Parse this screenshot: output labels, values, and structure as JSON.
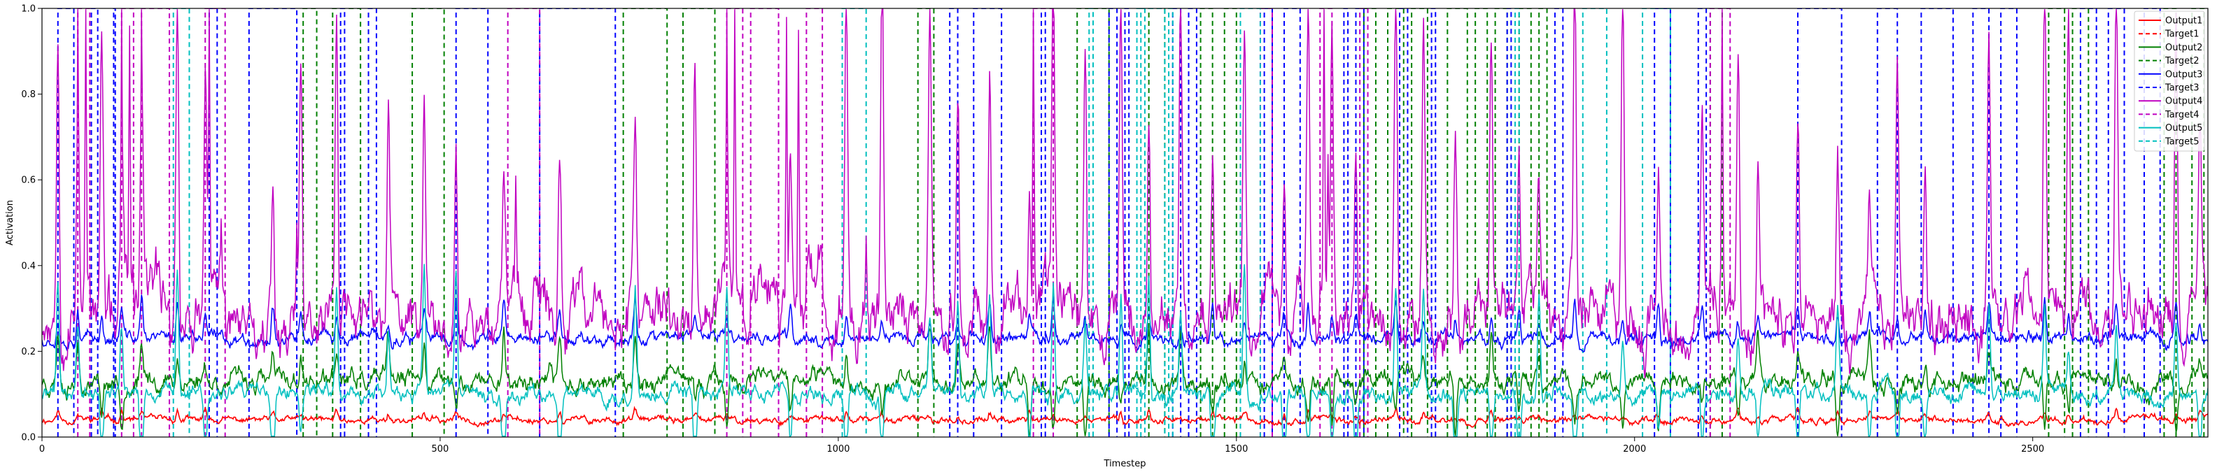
{
  "chart_data": {
    "type": "line",
    "title": "",
    "xlabel": "Timestep",
    "ylabel": "Activation",
    "xlim": [
      0,
      2720
    ],
    "ylim": [
      0,
      1.0
    ],
    "x_ticks": [
      0,
      500,
      1000,
      1500,
      2000,
      2500
    ],
    "y_ticks": [
      0.0,
      0.2,
      0.4,
      0.6,
      0.8,
      1.0
    ],
    "x_tick_labels": [
      "0",
      "500",
      "1000",
      "1500",
      "2000",
      "2500"
    ],
    "y_tick_labels": [
      "0.0",
      "0.2",
      "0.4",
      "0.6",
      "0.8",
      "1.0"
    ],
    "grid": false,
    "legend_position": "top-right",
    "series": [
      {
        "name": "Output1",
        "color": "#ff0000",
        "style": "solid",
        "baseline": 0.04,
        "noise": 0.004,
        "spike": 0.02,
        "seed": 11
      },
      {
        "name": "Target1",
        "color": "#ff0000",
        "style": "dashed",
        "segments": []
      },
      {
        "name": "Output2",
        "color": "#008000",
        "style": "solid",
        "baseline": 0.13,
        "noise": 0.012,
        "spike": 0.12,
        "seed": 23
      },
      {
        "name": "Target2",
        "color": "#008000",
        "style": "dashed",
        "segments": [
          [
            328,
            345
          ],
          [
            365,
            400
          ],
          [
            465,
            505
          ],
          [
            730,
            785
          ],
          [
            805,
            845
          ],
          [
            1100,
            1120
          ],
          [
            1300,
            1340
          ],
          [
            1390,
            1410
          ],
          [
            1455,
            1470
          ],
          [
            1485,
            1500
          ],
          [
            1660,
            1675
          ],
          [
            1690,
            1710
          ],
          [
            1720,
            1740
          ],
          [
            1765,
            1790
          ],
          [
            1800,
            1815
          ],
          [
            1825,
            1840
          ],
          [
            1855,
            1870
          ],
          [
            1880,
            1890
          ],
          [
            2095,
            2110
          ],
          [
            2520,
            2540
          ],
          [
            2550,
            2570
          ],
          [
            2665,
            2680
          ],
          [
            2700,
            2715
          ]
        ]
      },
      {
        "name": "Output3",
        "color": "#0000ff",
        "style": "solid",
        "baseline": 0.23,
        "noise": 0.008,
        "spike": 0.08,
        "seed": 37
      },
      {
        "name": "Target3",
        "color": "#0000ff",
        "style": "dashed",
        "segments": [
          [
            20,
            40
          ],
          [
            62,
            70
          ],
          [
            90,
            92
          ],
          [
            210,
            220
          ],
          [
            260,
            320
          ],
          [
            375,
            380
          ],
          [
            410,
            420
          ],
          [
            520,
            560
          ],
          [
            625,
            720
          ],
          [
            1140,
            1150
          ],
          [
            1170,
            1205
          ],
          [
            1255,
            1260
          ],
          [
            1340,
            1350
          ],
          [
            1360,
            1365
          ],
          [
            1420,
            1430
          ],
          [
            1440,
            1450
          ],
          [
            1535,
            1545
          ],
          [
            1560,
            1580
          ],
          [
            1635,
            1640
          ],
          [
            1650,
            1660
          ],
          [
            1705,
            1715
          ],
          [
            1745,
            1750
          ],
          [
            1840,
            1845
          ],
          [
            1900,
            1910
          ],
          [
            2025,
            2045
          ],
          [
            2080,
            2090
          ],
          [
            2205,
            2260
          ],
          [
            2305,
            2330
          ],
          [
            2360,
            2400
          ],
          [
            2425,
            2445
          ],
          [
            2460,
            2480
          ],
          [
            2560,
            2580
          ],
          [
            2595,
            2615
          ],
          [
            2640,
            2660
          ]
        ]
      },
      {
        "name": "Output4",
        "color": "#c000c0",
        "style": "solid",
        "baseline": 0.28,
        "noise": 0.035,
        "spike": 0.7,
        "seed": 53
      },
      {
        "name": "Target4",
        "color": "#c000c0",
        "style": "dashed",
        "segments": [
          [
            45,
            60
          ],
          [
            100,
            115
          ],
          [
            125,
            160
          ],
          [
            205,
            230
          ],
          [
            585,
            625
          ],
          [
            860,
            880
          ],
          [
            890,
            925
          ],
          [
            960,
            980
          ],
          [
            1245,
            1270
          ],
          [
            1530,
            1545
          ],
          [
            1605,
            1620
          ],
          [
            1655,
            1665
          ],
          [
            2095,
            2120
          ]
        ]
      },
      {
        "name": "Output5",
        "color": "#00bfbf",
        "style": "solid",
        "baseline": 0.1,
        "noise": 0.01,
        "spike": 0.25,
        "seed": 71
      },
      {
        "name": "Target5",
        "color": "#00bfbf",
        "style": "dashed",
        "segments": [
          [
            165,
            185
          ],
          [
            1005,
            1035
          ],
          [
            1315,
            1320
          ],
          [
            1375,
            1385
          ],
          [
            1380,
            1410
          ],
          [
            1415,
            1420
          ],
          [
            1505,
            1530
          ],
          [
            1850,
            1855
          ],
          [
            1935,
            1965
          ],
          [
            2010,
            2045
          ]
        ]
      }
    ],
    "spike_positions": [
      20,
      45,
      75,
      100,
      125,
      170,
      205,
      290,
      325,
      370,
      435,
      480,
      520,
      580,
      650,
      745,
      820,
      860,
      940,
      1010,
      1055,
      1115,
      1150,
      1190,
      1240,
      1270,
      1310,
      1355,
      1390,
      1430,
      1470,
      1510,
      1560,
      1590,
      1620,
      1650,
      1700,
      1735,
      1775,
      1820,
      1855,
      1880,
      1925,
      1985,
      2030,
      2085,
      2130,
      2155,
      2205,
      2255,
      2295,
      2330,
      2365,
      2445,
      2515,
      2545,
      2605,
      2680,
      2710
    ],
    "big_spike_series4": [
      [
        45,
        0.99
      ],
      [
        55,
        0.94
      ],
      [
        100,
        0.98
      ],
      [
        110,
        0.9
      ],
      [
        125,
        0.98
      ],
      [
        210,
        0.96
      ],
      [
        225,
        0.45
      ],
      [
        320,
        0.5
      ],
      [
        580,
        0.62
      ],
      [
        595,
        0.55
      ],
      [
        860,
        0.98
      ],
      [
        870,
        0.95
      ],
      [
        935,
        0.98
      ],
      [
        950,
        0.95
      ],
      [
        1035,
        0.47
      ],
      [
        1245,
        0.98
      ],
      [
        1610,
        0.98
      ],
      [
        1615,
        0.6
      ],
      [
        2110,
        0.98
      ]
    ]
  }
}
